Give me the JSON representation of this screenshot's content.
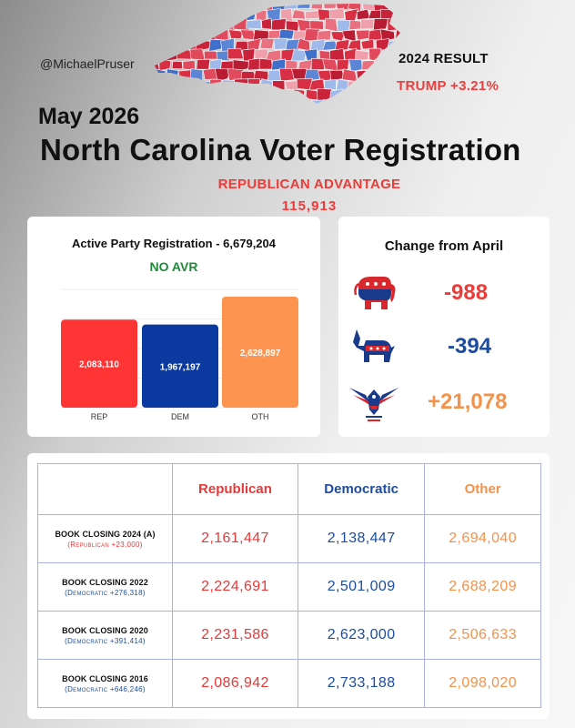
{
  "header": {
    "handle": "@MichaelPruser",
    "result_label": "2024 RESULT",
    "result_value": "TRUMP +3.21%",
    "date": "May 2026",
    "title": "North Carolina Voter Registration",
    "advantage_label": "REPUBLICAN ADVANTAGE",
    "advantage_value": "115,913"
  },
  "colors": {
    "rep": "#ff3535",
    "dem": "#0a3aa0",
    "oth": "#fd9450",
    "rep_text": "#e5393a",
    "dem_text": "#1d4da0",
    "oth_text": "#f4924a"
  },
  "change": {
    "title": "Change from April",
    "items": [
      {
        "party": "REP",
        "icon": "elephant-icon",
        "value": "-988",
        "color": "#ee3b38"
      },
      {
        "party": "DEM",
        "icon": "donkey-icon",
        "value": "-394",
        "color": "#1d4da0"
      },
      {
        "party": "OTH",
        "icon": "eagle-icon",
        "value": "+21,078",
        "color": "#f4924a"
      }
    ]
  },
  "chart_data": {
    "type": "bar",
    "title": "Active Party Registration - 6,679,204",
    "subtitle": "NO AVR",
    "categories": [
      "REP",
      "DEM",
      "OTH"
    ],
    "values": [
      2083110,
      1967197,
      2628897
    ],
    "data_labels": [
      "2,083,110",
      "1,967,197",
      "2,628,897"
    ],
    "colors": [
      "#ff3535",
      "#0a3aa0",
      "#fd9450"
    ],
    "ylim": [
      0,
      2800000
    ],
    "grid": true,
    "legend": "none"
  },
  "table": {
    "headers": [
      "",
      "Republican",
      "Democratic",
      "Other"
    ],
    "rows": [
      {
        "label": "BOOK CLOSING 2024 (A)",
        "note": "(Republican +23,000)",
        "note_party": "rep",
        "rep": "2,161,447",
        "dem": "2,138,447",
        "oth": "2,694,040"
      },
      {
        "label": "BOOK CLOSING 2022",
        "note": "(Democratic +276,318)",
        "note_party": "dem",
        "rep": "2,224,691",
        "dem": "2,501,009",
        "oth": "2,688,209"
      },
      {
        "label": "BOOK CLOSING 2020",
        "note": "(Democratic +391,414)",
        "note_party": "dem",
        "rep": "2,231,586",
        "dem": "2,623,000",
        "oth": "2,506,633"
      },
      {
        "label": "BOOK CLOSING 2016",
        "note": "(Democratic +646,246)",
        "note_party": "dem",
        "rep": "2,086,942",
        "dem": "2,733,188",
        "oth": "2,098,020"
      }
    ]
  }
}
